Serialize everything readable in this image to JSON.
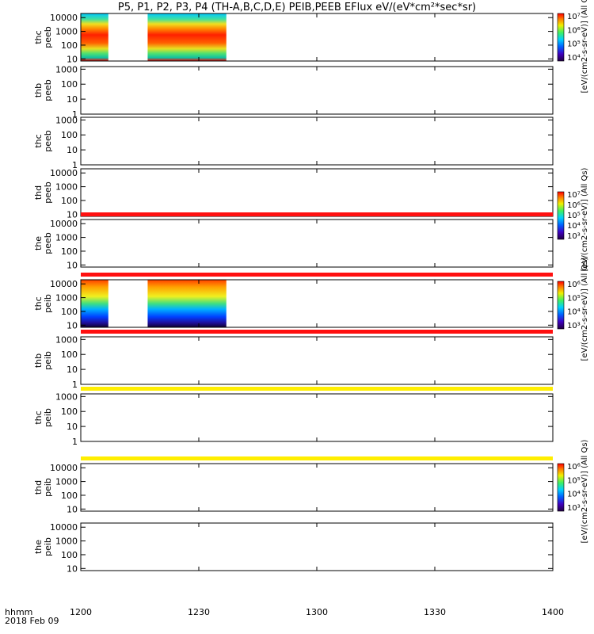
{
  "chart_data": {
    "type": "heatmap",
    "title": "P5, P1, P2, P3, P4 (TH-A,B,C,D,E) PEIB,PEEB EFlux eV/(eV*cm²*sec*sr)",
    "x_axis": {
      "range": [
        "12:00",
        "14:00"
      ],
      "ticks": [
        "1200",
        "1230",
        "1300",
        "1330",
        "1400"
      ],
      "row_label_1": "hhmm",
      "row_label_2": "2018 Feb 09"
    },
    "panels": [
      {
        "label_1": "thc",
        "label_2": "peeb",
        "ylim": [
          7,
          20000
        ],
        "ticks": [
          "10",
          "100",
          "1000",
          "10000"
        ],
        "data_intervals": [
          [
            "12:00",
            "12:07"
          ],
          [
            "12:17",
            "12:37"
          ]
        ],
        "flat_line": null
      },
      {
        "label_1": "thb",
        "label_2": "peeb",
        "ylim": [
          1,
          1500
        ],
        "ticks": [
          "1",
          "10",
          "100",
          "1000"
        ],
        "data_intervals": [],
        "flat_line": null
      },
      {
        "label_1": "thc",
        "label_2": "peeb",
        "ylim": [
          1,
          1500
        ],
        "ticks": [
          "1",
          "10",
          "100",
          "1000"
        ],
        "data_intervals": [],
        "flat_line": null
      },
      {
        "label_1": "thd",
        "label_2": "peeb",
        "ylim": [
          7,
          20000
        ],
        "ticks": [
          "10",
          "100",
          "1000",
          "10000"
        ],
        "data_intervals": [],
        "flat_line": null
      },
      {
        "label_1": "the",
        "label_2": "peeb",
        "ylim": [
          7,
          20000
        ],
        "ticks": [
          "10",
          "100",
          "1000",
          "10000"
        ],
        "data_intervals": [],
        "flat_line": "red"
      },
      {
        "label_1": "thc",
        "label_2": "peib",
        "ylim": [
          7,
          20000
        ],
        "ticks": [
          "10",
          "100",
          "1000",
          "10000"
        ],
        "data_intervals": [
          [
            "12:00",
            "12:07"
          ],
          [
            "12:17",
            "12:37"
          ]
        ],
        "flat_line": "red"
      },
      {
        "label_1": "thb",
        "label_2": "peib",
        "ylim": [
          1,
          1500
        ],
        "ticks": [
          "1",
          "10",
          "100",
          "1000"
        ],
        "data_intervals": [],
        "flat_line": "red"
      },
      {
        "label_1": "thc",
        "label_2": "peib",
        "ylim": [
          1,
          1500
        ],
        "ticks": [
          "1",
          "10",
          "100",
          "1000"
        ],
        "data_intervals": [],
        "flat_line": "yellow"
      },
      {
        "label_1": "thd",
        "label_2": "peib",
        "ylim": [
          7,
          20000
        ],
        "ticks": [
          "10",
          "100",
          "1000",
          "10000"
        ],
        "data_intervals": [],
        "flat_line": "yellow"
      },
      {
        "label_1": "the",
        "label_2": "peib",
        "ylim": [
          7,
          20000
        ],
        "ticks": [
          "10",
          "100",
          "1000",
          "10000"
        ],
        "data_intervals": [],
        "flat_line": null
      }
    ],
    "colorbars": [
      {
        "ticks": [
          "10⁴",
          "10⁵",
          "10⁶",
          "10⁷"
        ],
        "label": "[eV/(cm2-s-sr-eV)] (All Qs)"
      },
      {
        "ticks": [
          "10³",
          "10⁴",
          "10⁵",
          "10⁶",
          "10⁷"
        ],
        "label": "[eV/(cm2-s-sr-eV)] (All Qs)"
      },
      {
        "ticks": [
          "10³",
          "10⁴",
          "10⁵",
          "10⁶"
        ],
        "label": "[eV/(cm2-s-sr-eV)] (All Qs)"
      },
      {
        "ticks": [
          "10³",
          "10⁴",
          "10⁵",
          "10⁶"
        ],
        "label": "[eV/(cm2-s-sr-eV)] (All Qs)"
      }
    ],
    "colors": {
      "high": "#ff0000",
      "mid": "#ffcc00",
      "low": "#00aaff",
      "floor": "#220066",
      "red_line": "#ff1010",
      "yellow_line": "#ffee00"
    }
  }
}
